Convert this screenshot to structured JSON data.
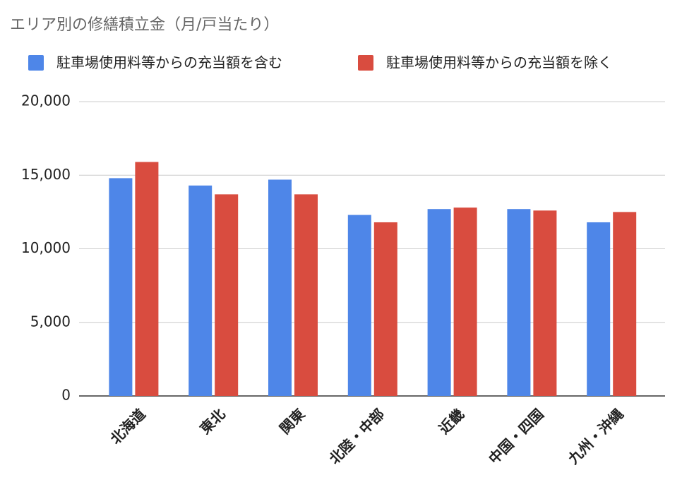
{
  "chart_data": {
    "type": "bar",
    "title": "エリア別の修繕積立金（月/戸当たり）",
    "categories": [
      "北海道",
      "東北",
      "関東",
      "北陸・中部",
      "近畿",
      "中国・四国",
      "九州・沖縄"
    ],
    "series": [
      {
        "name": "駐車場使用料等からの充当額を含む",
        "color": "#4e86e8",
        "values": [
          14800,
          14300,
          14700,
          12300,
          12700,
          12700,
          11800
        ]
      },
      {
        "name": "駐車場使用料等からの充当額を除く",
        "color": "#d94c3f",
        "values": [
          15900,
          13700,
          13700,
          11800,
          12800,
          12600,
          12500
        ]
      }
    ],
    "ylim": [
      0,
      20000
    ],
    "yticks": [
      0,
      {
        "value": 5000,
        "label": "5,000"
      },
      {
        "value": 10000,
        "label": "10,000"
      },
      {
        "value": 15000,
        "label": "15,000"
      },
      {
        "value": 20000,
        "label": "20,000"
      }
    ],
    "grid": true
  }
}
